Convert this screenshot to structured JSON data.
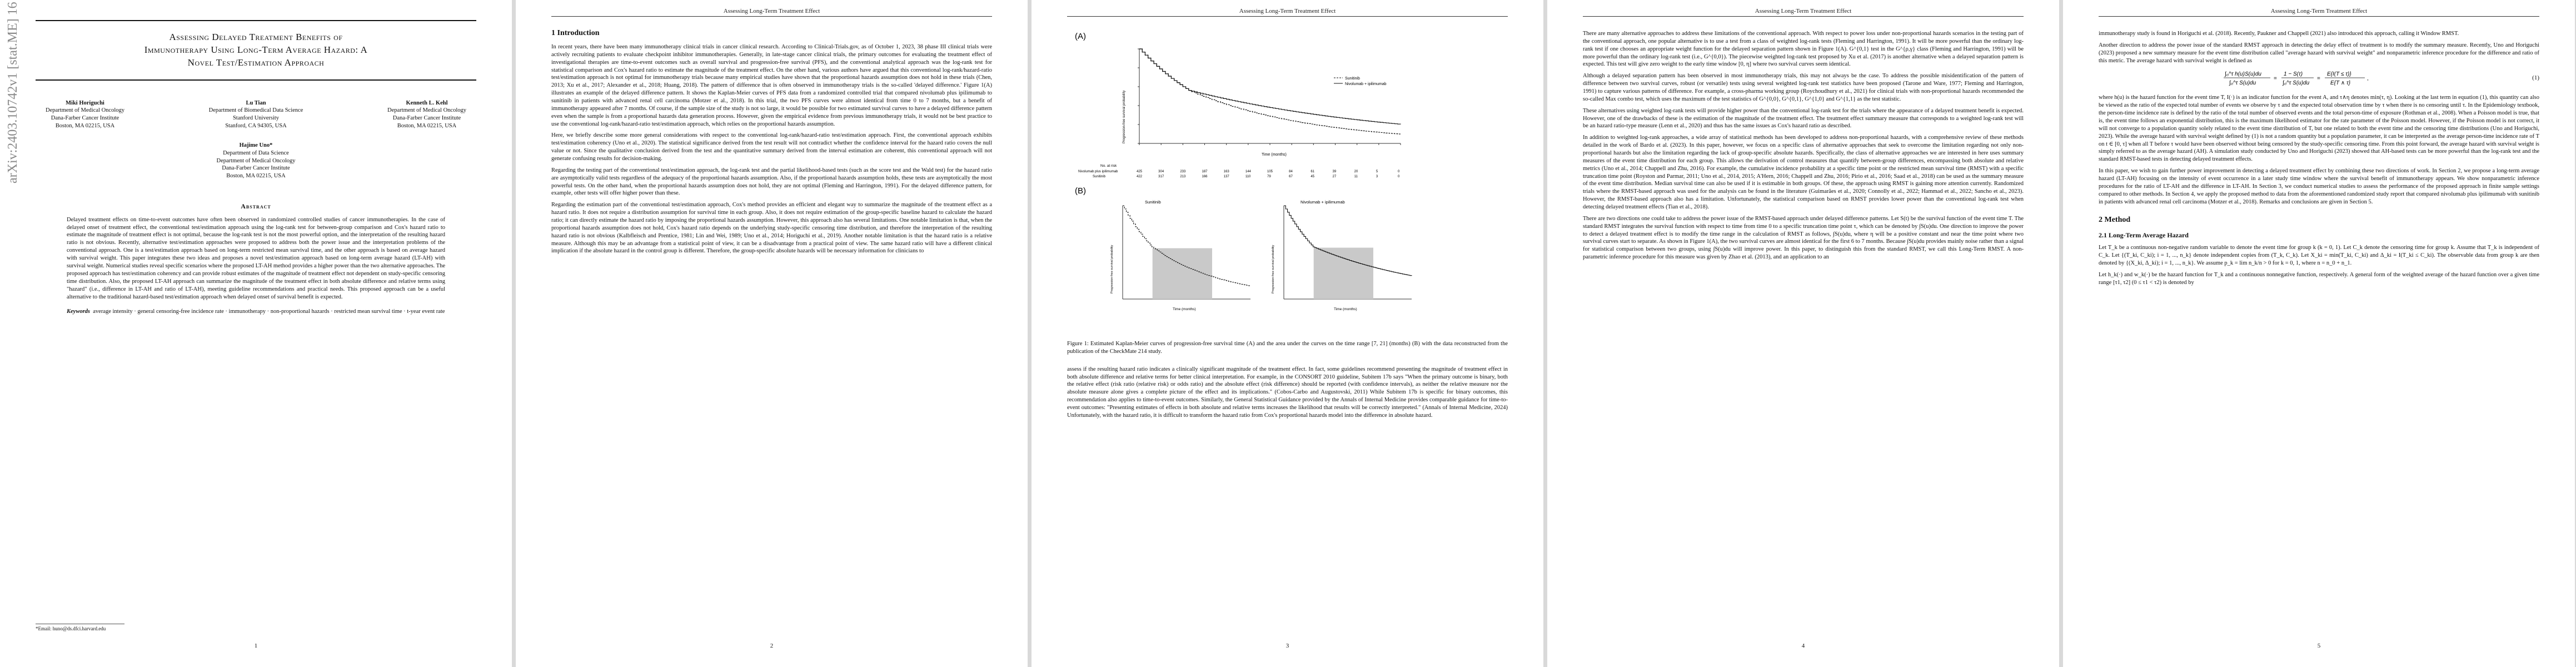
{
  "running_head": "Assessing Long-Term Treatment Effect",
  "arxiv_stamp": "arXiv:2403.10742v1  [stat.ME]  16 Mar 2024",
  "page1": {
    "title_lines": [
      "Assessing Delayed Treatment Benefits of",
      "Immunotherapy Using Long-Term Average Hazard: A",
      "Novel Test/Estimation Approach"
    ],
    "authors": [
      {
        "name": "Miki Horiguchi",
        "lines": [
          "Department of Medical Oncology",
          "Dana-Farber Cancer Institute",
          "Boston, MA 02215, USA"
        ]
      },
      {
        "name": "Lu Tian",
        "lines": [
          "Department of Biomedical Data Science",
          "Stanford University",
          "Stanford, CA 94305, USA"
        ]
      },
      {
        "name": "Kenneth L. Kehl",
        "lines": [
          "Department of Medical Oncology",
          "Dana-Farber Cancer Institute",
          "Boston, MA 02215, USA"
        ]
      }
    ],
    "author4": {
      "name": "Hajime Uno*",
      "lines": [
        "Department of Data Science",
        "Department of Medical Oncology",
        "Dana-Farber Cancer Institute",
        "Boston, MA 02215, USA"
      ]
    },
    "abstract_heading": "Abstract",
    "abstract": "Delayed treatment effects on time-to-event outcomes have often been observed in randomized controlled studies of cancer immunotherapies. In the case of delayed onset of treatment effect, the conventional test/estimation approach using the log-rank test for between-group comparison and Cox's hazard ratio to estimate the magnitude of treatment effect is not optimal, because the log-rank test is not the most powerful option, and the interpretation of the resulting hazard ratio is not obvious. Recently, alternative test/estimation approaches were proposed to address both the power issue and the interpretation problems of the conventional approach. One is a test/estimation approach based on long-term restricted mean survival time, and the other approach is based on average hazard with survival weight. This paper integrates these two ideas and proposes a novel test/estimation approach based on long-term average hazard (LT-AH) with survival weight. Numerical studies reveal specific scenarios where the proposed LT-AH method provides a higher power than the two alternative approaches. The proposed approach has test/estimation coherency and can provide robust estimates of the magnitude of treatment effect not dependent on study-specific censoring time distribution. Also, the proposed LT-AH approach can summarize the magnitude of the treatment effect in both absolute difference and relative terms using \"hazard\" (i.e., difference in LT-AH and ratio of LT-AH), meeting guideline recommendations and practical needs. This proposed approach can be a useful alternative to the traditional hazard-based test/estimation approach when delayed onset of survival benefit is expected.",
    "keywords_label": "Keywords",
    "keywords": "average intensity · general censoring-free incidence rate · immunotherapy · non-proportional hazards · restricted mean survival time · t-year event rate",
    "footnote": "*Email: huno@ds.dfci.harvard.edu",
    "page_number": "1"
  },
  "page2": {
    "section": "1   Introduction",
    "paragraphs": [
      "In recent years, there have been many immunotherapy clinical trials in cancer clinical research. According to Clinical-Trials.gov, as of October 1, 2023, 38 phase III clinical trials were actively recruiting patients to evaluate checkpoint inhibitor immunotherapies. Generally, in late-stage cancer clinical trials, the primary outcomes for evaluating the treatment effect of investigational therapies are time-to-event outcomes such as overall survival and progression-free survival (PFS), and the conventional analytical approach was the log-rank test for statistical comparison and Cox's hazard ratio to estimate the magnitude of the treatment effect. On the other hand, various authors have argued that this conventional log-rank/hazard-ratio test/estimation approach is not optimal for immunotherapy trials because many empirical studies have shown that the proportional hazards assumption does not hold in these trials (Chen, 2013; Xu et al., 2017; Alexander et al., 2018; Huang, 2018). The pattern of difference that is often observed in immunotherapy trials is the so-called 'delayed difference.' Figure 1(A) illustrates an example of the delayed difference pattern. It shows the Kaplan-Meier curves of PFS data from a randomized controlled trial that compared nivolumab plus ipilimumab to sunitinib in patients with advanced renal cell carcinoma (Motzer et al., 2018). In this trial, the two PFS curves were almost identical from time 0 to 7 months, but a benefit of immunotherapy appeared after 7 months. Of course, if the sample size of the study is not so large, it would be possible for two estimated survival curves to have a delayed difference pattern even when the sample is from a proportional hazards data generation process. However, given the empirical evidence from previous immunotherapy trials, it would not be best practice to use the conventional log-rank/hazard-ratio test/estimation approach, which relies on the proportional hazards assumption.",
      "Here, we briefly describe some more general considerations with respect to the conventional log-rank/hazard-ratio test/estimation approach. First, the conventional approach exhibits test/estimation coherency (Uno et al., 2020). The statistical significance derived from the test result will not contradict whether the confidence interval for the hazard ratio covers the null value or not. Since the qualitative conclusion derived from the test and the quantitative summary derived from the interval estimation are coherent, this conventional approach will not generate confusing results for decision-making.",
      "Regarding the testing part of the conventional test/estimation approach, the log-rank test and the partial likelihood-based tests (such as the score test and the Wald test) for the hazard ratio are asymptotically valid tests regardless of the adequacy of the proportional hazards assumption. Also, if the proportional hazards assumption holds, these tests are asymptotically the most powerful tests. On the other hand, when the proportional hazards assumption does not hold, they are not optimal (Fleming and Harrington, 1991). For the delayed difference pattern, for example, other tests will offer higher power than these.",
      "Regarding the estimation part of the conventional test/estimation approach, Cox's method provides an efficient and elegant way to summarize the magnitude of the treatment effect as a hazard ratio. It does not require a distribution assumption for survival time in each group. Also, it does not require estimation of the group-specific baseline hazard to calculate the hazard ratio; it can directly estimate the hazard ratio by imposing the proportional hazards assumption. However, this approach also has several limitations. One notable limitation is that, when the proportional hazards assumption does not hold, Cox's hazard ratio depends on the underlying study-specific censoring time distribution, and therefore the interpretation of the resulting hazard ratio is not obvious (Kalbfleisch and Prentice, 1981; Lin and Wei, 1989; Uno et al., 2014; Horiguchi et al., 2019). Another notable limitation is that the hazard ratio is a relative measure. Although this may be an advantage from a statistical point of view, it can be a disadvantage from a practical point of view. The same hazard ratio will have a different clinical implication if the absolute hazard in the control group is different. Therefore, the group-specific absolute hazards will be necessary information for clinicians to"
    ],
    "page_number": "2"
  },
  "page3": {
    "label_a": "(A)",
    "label_b": "(B)",
    "legend": [
      "Sunitinib",
      "Nivolumab + ipilimumab"
    ],
    "ylabel": "Progression-free survival probability",
    "xlabel": "Time (months)",
    "risk_table": {
      "header": "No. at risk",
      "rows": [
        {
          "name": "Nivolumab plus ipilimumab",
          "values": [
            "425",
            "304",
            "233",
            "187",
            "163",
            "144",
            "105",
            "84",
            "61",
            "39",
            "20",
            "5",
            "0"
          ]
        },
        {
          "name": "Sunitinib",
          "values": [
            "422",
            "317",
            "213",
            "166",
            "137",
            "110",
            "79",
            "67",
            "45",
            "27",
            "11",
            "3",
            "0"
          ]
        }
      ]
    },
    "panel_b_titles": [
      "Sunitinib",
      "Nivolumab + ipilimumab"
    ],
    "caption": "Figure 1: Estimated Kaplan-Meier curves of progression-free survival time (A) and the area under the curves on the time range [7, 21] (months) (B) with the data reconstructed from the publication of the CheckMate 214 study.",
    "paragraphs": [
      "assess if the resulting hazard ratio indicates a clinically significant magnitude of the treatment effect. In fact, some guidelines recommend presenting the magnitude of treatment effect in both absolute difference and relative terms for better clinical interpretation. For example, in the CONSORT 2010 guideline, Subitem 17b says \"When the primary outcome is binary, both the relative effect (risk ratio (relative risk) or odds ratio) and the absolute effect (risk difference) should be reported (with confidence intervals), as neither the relative measure nor the absolute measure alone gives a complete picture of the effect and its implications.\" (Cobos-Carbo and Augustovski, 2011) While Subitem 17b is specific for binary outcomes, this recommendation also applies to time-to-event outcomes. Similarly, the General Statistical Guidance provided by the Annals of Internal Medicine provides comparable guidance for time-to-event outcomes: \"Presenting estimates of effects in both absolute and relative terms increases the likelihood that results will be correctly interpreted.\" (Annals of Internal Medicine, 2024) Unfortunately, with the hazard ratio, it is difficult to transform the hazard ratio from Cox's proportional hazards model into the difference in absolute hazard."
    ],
    "page_number": "3"
  },
  "page4": {
    "paragraphs": [
      "There are many alternative approaches to address these limitations of the conventional approach. With respect to power loss under non-proportional hazards scenarios in the testing part of the conventional approach, one popular alternative is to use a test from a class of weighted log-rank tests (Fleming and Harrington, 1991). It will be more powerful than the ordinary log-rank test if one chooses an appropriate weight function for the delayed separation pattern shown in Figure 1(A). G^{0,1} test in the G^{ρ,γ} class (Fleming and Harrington, 1991) will be more powerful than the ordinary log-rank test (i.e., G^{0,0}). The piecewise weighted log-rank test proposed by Xu et al. (2017) is another alternative when a delayed separation pattern is expected. This test will give zero weight to the early time window [0, η] where two survival curves seem identical.",
      "Although a delayed separation pattern has been observed in most immunotherapy trials, this may not always be the case. To address the possible misidentification of the pattern of difference between two survival curves, robust (or versatile) tests using several weighted log-rank test statistics have been proposed (Tarone and Ware, 1977; Fleming and Harrington, 1991) to capture various patterns of difference. For example, a cross-pharma working group (Roychoudhury et al., 2021) for clinical trials with non-proportional hazards recommended the so-called Max combo test, which uses the maximum of the test statistics of G^{0,0}, G^{0,1}, G^{1,0} and G^{1,1} as the test statistic.",
      "These alternatives using weighted log-rank tests will provide higher power than the conventional log-rank test for the trials where the appearance of a delayed treatment benefit is expected. However, one of the drawbacks of these is the estimation of the magnitude of the treatment effect. The treatment effect summary measure that corresponds to a weighted log-rank test will be an hazard ratio-type measure (Lenn et al., 2020) and thus has the same issues as Cox's hazard ratio as described.",
      "In addition to weighted log-rank approaches, a wide array of statistical methods has been developed to address non-proportional hazards, with a comprehensive review of these methods detailed in the work of Bardo et al. (2023). In this paper, however, we focus on a specific class of alternative approaches that seek to overcome the limitation regarding not only non-proportional hazards but also the limitation regarding the lack of group-specific absolute hazards. Specifically, the class of alternative approaches we are interested in here uses summary measures of the event time distribution for each group. This allows the derivation of control measures that quantify between-group differences, encompassing both absolute and relative metrics (Uno et al., 2014; Chappell and Zhu, 2016). For example, the cumulative incidence probability at a specific time point or the restricted mean survival time (RMST) with a specific truncation time point (Royston and Parmar, 2011; Uno et al., 2014, 2015; A'Hern, 2016; Chappell and Zhu, 2016; Pirio et al., 2016; Saad et al., 2018) can be used as the summary measure of the event time distribution. Median survival time can also be used if it is estimable in both groups. Of these, the approach using RMST is gaining more attention currently. Randomized trials where the RMST-based approach was used for the analysis can be found in the literature (Guimarães et al., 2020; Connolly et al., 2022; Hammad et al., 2022; Sancho et al., 2023). However, the RMST-based approach also has a limitation. Unfortunately, the statistical comparison based on RMST provides lower power than the conventional log-rank test when detecting delayed treatment effects (Tian et al., 2018).",
      "There are two directions one could take to address the power issue of the RMST-based approach under delayed difference patterns. Let S(t) be the survival function of the event time T. The standard RMST integrates the survival function with respect to time from time 0 to a specific truncation time point τ, which can be denoted by ∫S(u)du. One direction to improve the power to detect a delayed treatment effect is to modify the time range in the calculation of RMST as follows, ∫S(u)du, where η will be a positive constant and near the time point where two survival curves start to separate. As shown in Figure 1(A), the two survival curves are almost identical for the first 6 to 7 months. Because ∫S(u)du provides mainly noise rather than a signal for statistical comparison between two groups, using ∫S(u)du will improve power. In this paper, to distinguish this from the standard RMST, we call this Long-Term RMST. A non-parametric inference procedure for this measure was given by Zhao et al. (2013), and an application to an"
    ],
    "page_number": "4"
  },
  "page5": {
    "paragraphs_top": [
      "immunotherapy study is found in Horiguchi et al. (2018). Recently, Paukner and Chappell (2021) also introduced this approach, calling it Window RMST.",
      "Another direction to address the power issue of the standard RMST approach in detecting the delay effect of treatment is to modify the summary measure. Recently, Uno and Horiguchi (2023) proposed a new summary measure for the event time distribution called \"average hazard with survival weight\" and nonparametric inference procedure for the difference and ratio of this metric. The average hazard with survival weight is defined as"
    ],
    "eq1_number": "(1)",
    "paragraphs_mid": [
      "where h(u) is the hazard function for the event time T, I(·) is an indicator function for the event A, and τ∧η denotes min(τ, η). Looking at the last term in equation (1), this quantity can also be viewed as the ratio of the expected total number of events we observe by τ and the expected total observation time by τ when there is no censoring until τ. In the Epidemiology textbook, the person-time incidence rate is defined by the ratio of the total number of observed events and the total person-time of exposure (Rothman et al., 2008). When a Poisson model is true, that is, the event time follows an exponential distribution, this is the maximum likelihood estimator for the rate parameter of the Poisson model. However, if the Poisson model is not correct, it will not converge to a population quantity solely related to the event time distribution of T, but one related to both the event time and the censoring time distributions (Uno and Horiguchi, 2023). While the average hazard with survival weight defined by (1) is not a random quantity but a population parameter, it can be interpreted as the average person-time incidence rate of T on t ∈ [0, τ] when all T before τ would have been observed without being censored by the study-specific censoring time. From this point forward, the average hazard with survival weight is simply referred to as the average hazard (AH). A simulation study conducted by Uno and Horiguchi (2023) showed that AH-based tests can be more powerful than the log-rank test and the standard RMST-based tests in detecting delayed treatment effects.",
      "In this paper, we wish to gain further power improvement in detecting a delayed treatment effect by combining these two directions of work. In Section 2, we propose a long-term average hazard (LT-AH) focusing on the intensity of event occurrence in a later study time window where the survival benefit of immunotherapy appears. We show nonparametric inference procedures for the ratio of LT-AH and the difference in LT-AH. In Section 3, we conduct numerical studies to assess the performance of the proposed approach in finite sample settings compared to other methods. In Section 4, we apply the proposed method to data from the aforementioned randomized study report that compared nivolumab plus ipilimumab with sunitinib in patients with advanced renal cell carcinoma (Motzer et al., 2018). Remarks and conclusions are given in Section 5."
    ],
    "section": "2   Method",
    "subsection": "2.1   Long-Term Average Hazard",
    "paragraphs_end": [
      "Let T_k be a continuous non-negative random variable to denote the event time for group k (k = 0, 1). Let C_k denote the censoring time for group k. Assume that T_k is independent of C_k. Let {(T_ki, C_ki); i = 1, ..., n_k} denote independent copies from (T_k, C_k). Let X_ki = min(T_ki, C_ki) and Δ_ki = I(T_ki ≤ C_ki). The observable data from group k are then denoted by {(X_ki, Δ_ki); i = 1, ..., n_k}. We assume p_k = lim n_k/n > 0 for k = 0, 1, where n = n_0 + n_1.",
      "Let h_k(·) and w_k(·) be the hazard function for T_k and a continuous nonnegative function, respectively. A general form of the weighted average of the hazard function over a given time range [τ1, τ2] (0 ≤ τ1 < τ2) is denoted by"
    ],
    "page_number": "5"
  }
}
